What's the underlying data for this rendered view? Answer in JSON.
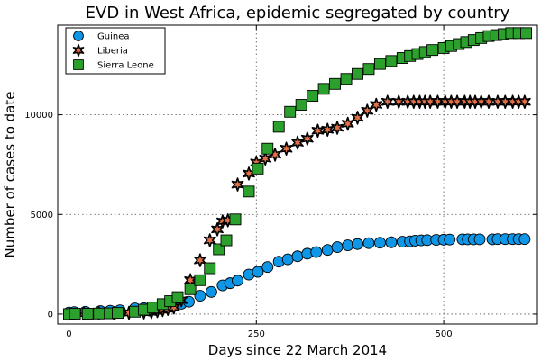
{
  "chart_data": {
    "type": "scatter",
    "title": "EVD in West Africa, epidemic segregated by country",
    "xlabel": "Days since 22 March 2014",
    "ylabel": "Number of cases to date",
    "xlim": [
      -15,
      625
    ],
    "ylim": [
      -500,
      14500
    ],
    "xticks": [
      0,
      250,
      500
    ],
    "xtick_labels": [
      "0",
      "250",
      "500"
    ],
    "yticks": [
      0,
      5000,
      10000
    ],
    "ytick_labels": [
      "0",
      "5000",
      "10000"
    ],
    "grid": true,
    "legend_position": "top-left",
    "series": [
      {
        "name": "Guinea",
        "marker": "circle",
        "color": "#0f96e6",
        "x": [
          0,
          7,
          22,
          42,
          55,
          68,
          88,
          100,
          110,
          120,
          130,
          140,
          150,
          160,
          175,
          190,
          205,
          215,
          225,
          240,
          252,
          265,
          280,
          292,
          305,
          318,
          330,
          345,
          358,
          372,
          385,
          400,
          415,
          430,
          445,
          455,
          462,
          470,
          478,
          490,
          500,
          508,
          525,
          532,
          540,
          548,
          565,
          572,
          582,
          592,
          600,
          608
        ],
        "y": [
          80,
          100,
          120,
          150,
          170,
          190,
          290,
          300,
          330,
          360,
          400,
          450,
          520,
          620,
          920,
          1110,
          1440,
          1550,
          1680,
          1980,
          2120,
          2360,
          2630,
          2750,
          2900,
          3030,
          3110,
          3220,
          3360,
          3450,
          3510,
          3560,
          3580,
          3600,
          3630,
          3650,
          3680,
          3700,
          3710,
          3720,
          3730,
          3740,
          3750,
          3750,
          3750,
          3750,
          3750,
          3760,
          3760,
          3760,
          3760,
          3760
        ]
      },
      {
        "name": "Liberia",
        "marker": "star",
        "color": "#e26f46",
        "x": [
          20,
          40,
          60,
          80,
          100,
          110,
          118,
          125,
          132,
          140,
          150,
          162,
          175,
          188,
          198,
          205,
          212,
          225,
          240,
          250,
          262,
          275,
          290,
          305,
          318,
          332,
          345,
          358,
          372,
          385,
          398,
          410,
          425,
          440,
          452,
          460,
          468,
          475,
          482,
          492,
          502,
          510,
          518,
          528,
          535,
          542,
          550,
          560,
          572,
          582,
          592,
          600,
          608
        ],
        "y": [
          30,
          40,
          50,
          60,
          80,
          100,
          150,
          200,
          260,
          330,
          700,
          1700,
          2700,
          3700,
          4250,
          4650,
          4700,
          6500,
          7050,
          7600,
          7800,
          8000,
          8300,
          8600,
          8800,
          9200,
          9250,
          9350,
          9550,
          9850,
          10200,
          10500,
          10650,
          10650,
          10650,
          10650,
          10650,
          10650,
          10650,
          10650,
          10650,
          10650,
          10650,
          10650,
          10650,
          10650,
          10650,
          10650,
          10650,
          10650,
          10650,
          10650,
          10650
        ]
      },
      {
        "name": "Sierra Leone",
        "marker": "square",
        "color": "#2ca02c",
        "x": [
          0,
          8,
          25,
          40,
          55,
          65,
          88,
          100,
          112,
          125,
          135,
          145,
          162,
          175,
          188,
          200,
          210,
          222,
          240,
          252,
          265,
          280,
          295,
          310,
          325,
          340,
          355,
          370,
          385,
          400,
          415,
          430,
          445,
          455,
          465,
          475,
          485,
          500,
          510,
          520,
          530,
          540,
          550,
          560,
          570,
          580,
          590,
          600,
          610
        ],
        "y": [
          0,
          20,
          20,
          30,
          40,
          60,
          120,
          220,
          330,
          500,
          650,
          850,
          1250,
          1700,
          2300,
          3250,
          3700,
          4750,
          6150,
          7300,
          8300,
          9400,
          10150,
          10500,
          10950,
          11300,
          11550,
          11800,
          12050,
          12300,
          12550,
          12700,
          12850,
          12950,
          13050,
          13150,
          13250,
          13350,
          13450,
          13550,
          13650,
          13750,
          13850,
          13950,
          14000,
          14050,
          14100,
          14100,
          14100
        ]
      }
    ]
  }
}
